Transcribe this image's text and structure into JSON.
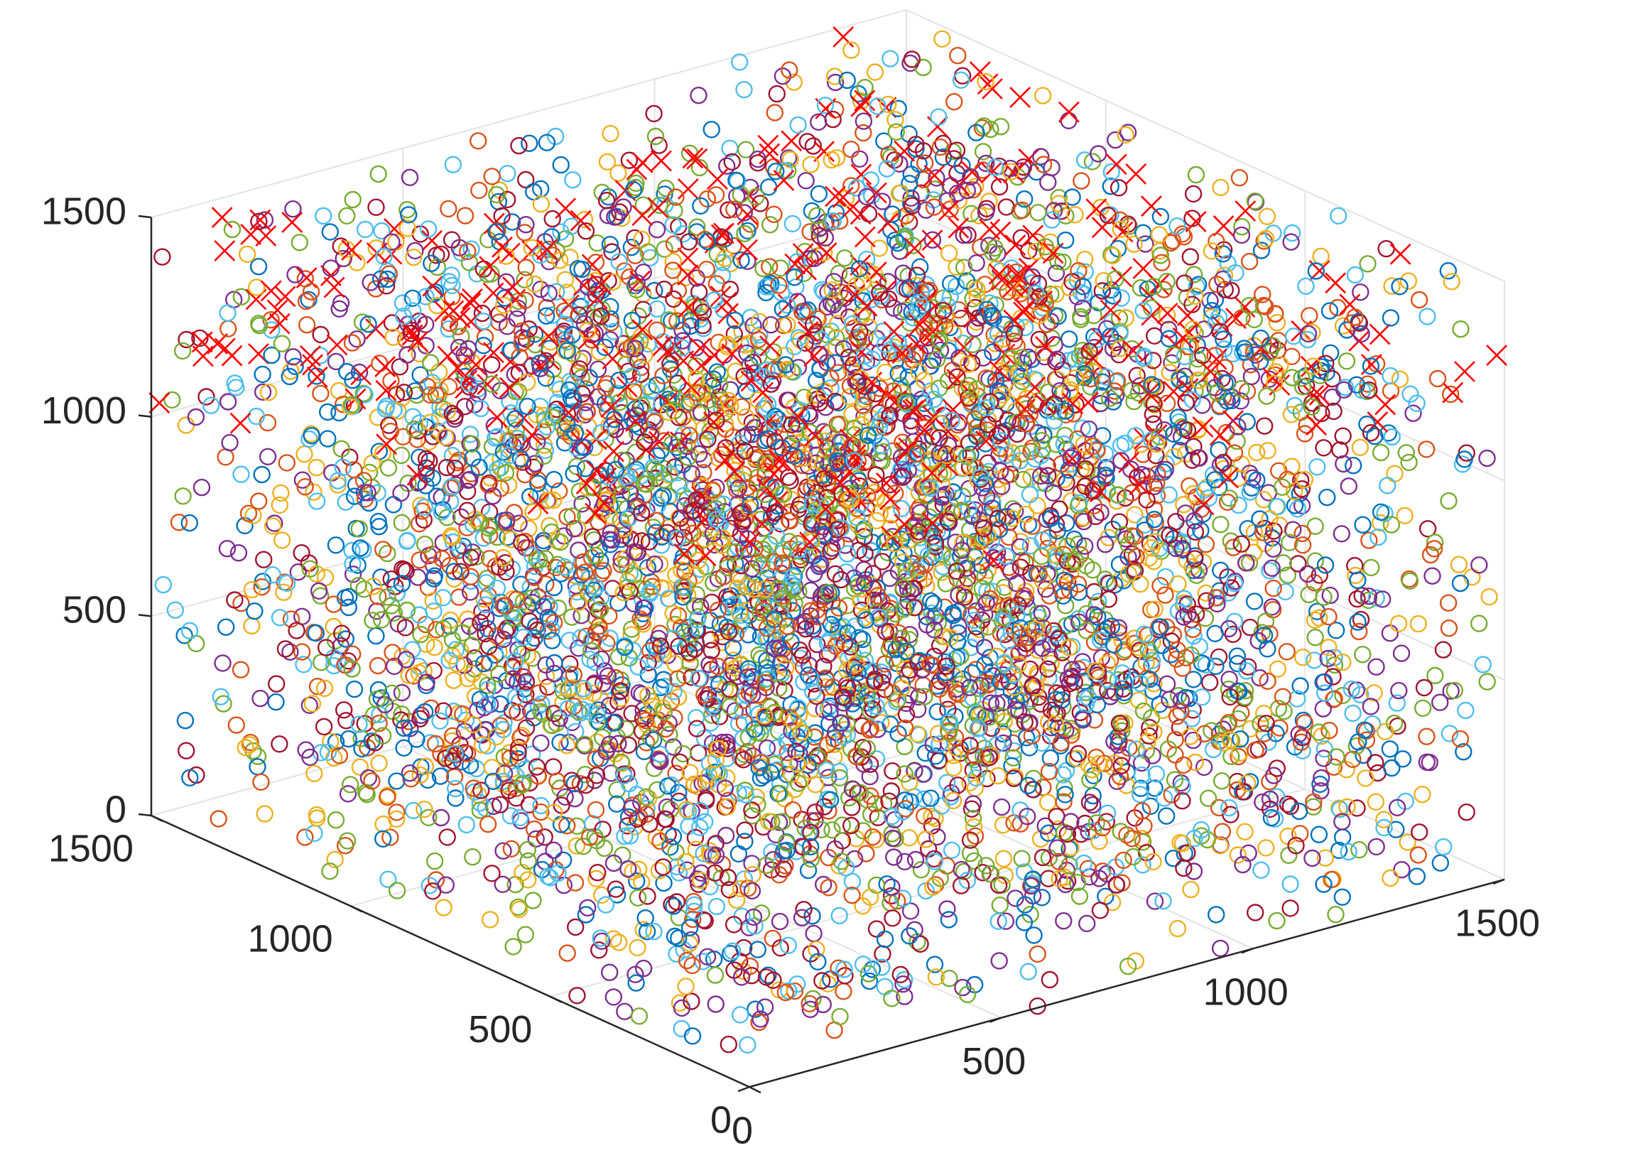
{
  "chart_data": {
    "type": "scatter",
    "projection": "3d",
    "title": "",
    "xlabel": "",
    "ylabel": "",
    "zlabel": "",
    "xlim": [
      0,
      1500
    ],
    "ylim": [
      0,
      1500
    ],
    "zlim": [
      0,
      1500
    ],
    "x_ticks": [
      "0",
      "500",
      "1000",
      "1500"
    ],
    "y_ticks": [
      "0",
      "500",
      "1000",
      "1500"
    ],
    "z_ticks": [
      "0",
      "500",
      "1000",
      "1500"
    ],
    "grid": true,
    "box": true,
    "legend": "none",
    "series": [
      {
        "marker": "o",
        "colors": [
          "#0072BD",
          "#D95319",
          "#EDB120",
          "#7E2F8E",
          "#77AC30",
          "#4DBEEE",
          "#A2142F"
        ],
        "count": 5400,
        "distribution": "approximately uniform within the cube [0,1500]^3"
      },
      {
        "marker": "x",
        "color": "#FF0000",
        "count": 330,
        "distribution": "points with large z, roughly 1000 to 1500, across the full x-y extent"
      }
    ]
  }
}
